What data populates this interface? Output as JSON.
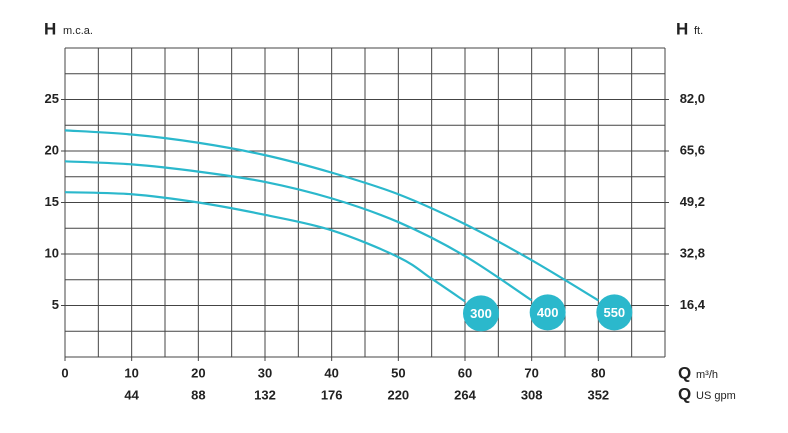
{
  "chart_data": {
    "type": "line",
    "y_label": {
      "symbol": "H",
      "unit": "m.c.a."
    },
    "y2_label": {
      "symbol": "H",
      "unit": "ft."
    },
    "x_label": {
      "symbol": "Q",
      "unit": "m³/h"
    },
    "x2_label": {
      "symbol": "Q",
      "unit": "US gpm"
    },
    "xlim": [
      0,
      90
    ],
    "xticks": [
      0,
      10,
      20,
      30,
      40,
      50,
      60,
      70,
      80
    ],
    "x2lim": [
      0,
      396
    ],
    "x2ticks": [
      44,
      88,
      132,
      176,
      220,
      264,
      308,
      352
    ],
    "ylim": [
      0,
      30
    ],
    "yticks": [
      5,
      10,
      15,
      20,
      25
    ],
    "y2lim": [
      0,
      98.4
    ],
    "y2ticks": [
      {
        "value": 16.4,
        "label": "16,4"
      },
      {
        "value": 32.8,
        "label": "32,8"
      },
      {
        "value": 49.2,
        "label": "49,2"
      },
      {
        "value": 65.6,
        "label": "65,6"
      },
      {
        "value": 82.0,
        "label": "82,0"
      }
    ],
    "grid": true,
    "series": [
      {
        "name": "300",
        "color": "#2bb8cc",
        "x": [
          0,
          10,
          20,
          30,
          40,
          50,
          55,
          60
        ],
        "values": [
          16,
          15.8,
          15,
          13.8,
          12.3,
          9.7,
          7.6,
          5.4
        ]
      },
      {
        "name": "400",
        "color": "#2bb8cc",
        "x": [
          0,
          10,
          20,
          30,
          40,
          50,
          60,
          70
        ],
        "values": [
          19,
          18.7,
          18,
          17,
          15.4,
          13.1,
          9.8,
          5.5
        ]
      },
      {
        "name": "550",
        "color": "#2bb8cc",
        "x": [
          0,
          10,
          20,
          30,
          40,
          50,
          60,
          70,
          80
        ],
        "values": [
          22,
          21.6,
          20.8,
          19.6,
          17.9,
          15.8,
          12.9,
          9.4,
          5.5
        ]
      }
    ]
  }
}
